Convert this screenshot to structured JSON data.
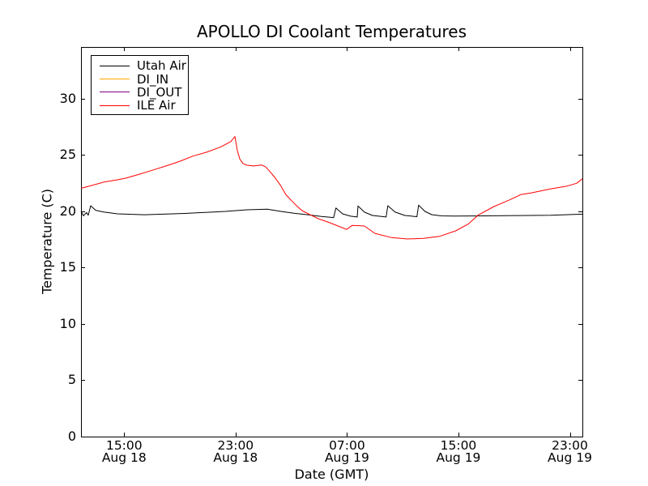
{
  "figure": {
    "background": "#ffffff",
    "frame_color": "#000000",
    "text_color": "#000000"
  },
  "chart_data": {
    "type": "line",
    "title": "APOLLO DI Coolant Temperatures",
    "xlabel": "Date (GMT)",
    "ylabel": "Temperature (C)",
    "x_unit": "hours since Aug 18 00:00 GMT",
    "xlim_hours": [
      11.9,
      47.9
    ],
    "ylim": [
      0,
      34.6
    ],
    "grid": false,
    "legend_position": "upper-left",
    "yticks": [
      {
        "value": 0,
        "label": "0"
      },
      {
        "value": 5,
        "label": "5"
      },
      {
        "value": 10,
        "label": "10"
      },
      {
        "value": 15,
        "label": "15"
      },
      {
        "value": 20,
        "label": "20"
      },
      {
        "value": 25,
        "label": "25"
      },
      {
        "value": 30,
        "label": "30"
      }
    ],
    "xticks": [
      {
        "value": 15,
        "time": "15:00",
        "date": "Aug 18"
      },
      {
        "value": 23,
        "time": "23:00",
        "date": "Aug 18"
      },
      {
        "value": 31,
        "time": "07:00",
        "date": "Aug 19"
      },
      {
        "value": 39,
        "time": "15:00",
        "date": "Aug 19"
      },
      {
        "value": 47,
        "time": "23:00",
        "date": "Aug 19"
      }
    ],
    "series": [
      {
        "name": "Utah Air",
        "color": "#000000",
        "points": [
          [
            11.9,
            20.02
          ],
          [
            12.07,
            19.6
          ],
          [
            12.3,
            19.9
          ],
          [
            12.42,
            19.66
          ],
          [
            12.6,
            20.5
          ],
          [
            12.95,
            20.1
          ],
          [
            13.53,
            19.95
          ],
          [
            14.52,
            19.78
          ],
          [
            16.44,
            19.7
          ],
          [
            19.34,
            19.82
          ],
          [
            22.25,
            20.0
          ],
          [
            23.82,
            20.14
          ],
          [
            25.27,
            20.2
          ],
          [
            26.26,
            20.0
          ],
          [
            27.19,
            19.83
          ],
          [
            28.18,
            19.7
          ],
          [
            29.17,
            19.55
          ],
          [
            30.04,
            19.45
          ],
          [
            30.2,
            20.3
          ],
          [
            30.68,
            19.78
          ],
          [
            31.26,
            19.57
          ],
          [
            31.73,
            19.5
          ],
          [
            31.79,
            20.48
          ],
          [
            32.25,
            19.93
          ],
          [
            32.83,
            19.64
          ],
          [
            33.81,
            19.5
          ],
          [
            33.93,
            20.5
          ],
          [
            34.46,
            19.93
          ],
          [
            35.16,
            19.64
          ],
          [
            36.02,
            19.53
          ],
          [
            36.14,
            20.55
          ],
          [
            36.6,
            20.0
          ],
          [
            37.08,
            19.71
          ],
          [
            37.77,
            19.6
          ],
          [
            38.65,
            19.58
          ],
          [
            40.97,
            19.6
          ],
          [
            43.3,
            19.63
          ],
          [
            45.62,
            19.66
          ],
          [
            47.9,
            19.75
          ]
        ]
      },
      {
        "name": "DI_IN",
        "color": "#ffa500",
        "points": []
      },
      {
        "name": "DI_OUT",
        "color": "#800080",
        "points": []
      },
      {
        "name": "ILE Air",
        "color": "#ff0000",
        "points": [
          [
            11.9,
            22.05
          ],
          [
            12.66,
            22.3
          ],
          [
            13.53,
            22.6
          ],
          [
            14.52,
            22.8
          ],
          [
            15.1,
            22.95
          ],
          [
            16.09,
            23.3
          ],
          [
            17.02,
            23.65
          ],
          [
            18.0,
            24.03
          ],
          [
            19.0,
            24.45
          ],
          [
            19.92,
            24.9
          ],
          [
            20.9,
            25.25
          ],
          [
            21.9,
            25.7
          ],
          [
            22.66,
            26.2
          ],
          [
            22.95,
            26.65
          ],
          [
            23.12,
            25.45
          ],
          [
            23.3,
            24.65
          ],
          [
            23.53,
            24.25
          ],
          [
            23.82,
            24.1
          ],
          [
            24.28,
            24.03
          ],
          [
            24.87,
            24.12
          ],
          [
            25.16,
            23.95
          ],
          [
            25.45,
            23.55
          ],
          [
            25.86,
            22.95
          ],
          [
            26.26,
            22.25
          ],
          [
            26.6,
            21.5
          ],
          [
            27.02,
            20.95
          ],
          [
            27.42,
            20.45
          ],
          [
            27.77,
            20.07
          ],
          [
            28.3,
            19.73
          ],
          [
            28.94,
            19.35
          ],
          [
            29.75,
            19.0
          ],
          [
            30.5,
            18.63
          ],
          [
            30.97,
            18.4
          ],
          [
            31.38,
            18.76
          ],
          [
            32.25,
            18.7
          ],
          [
            33.0,
            18.05
          ],
          [
            34.17,
            17.68
          ],
          [
            35.33,
            17.55
          ],
          [
            36.5,
            17.6
          ],
          [
            37.66,
            17.79
          ],
          [
            38.8,
            18.27
          ],
          [
            39.7,
            18.87
          ],
          [
            40.4,
            19.66
          ],
          [
            41.55,
            20.43
          ],
          [
            42.7,
            21.03
          ],
          [
            43.5,
            21.5
          ],
          [
            44.2,
            21.63
          ],
          [
            44.9,
            21.82
          ],
          [
            45.6,
            22.0
          ],
          [
            46.8,
            22.25
          ],
          [
            47.5,
            22.5
          ],
          [
            47.9,
            22.9
          ]
        ]
      }
    ]
  }
}
